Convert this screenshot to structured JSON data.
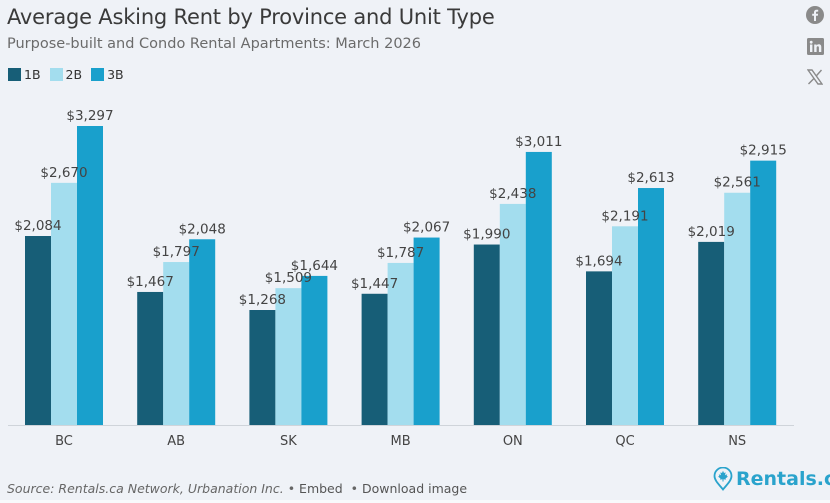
{
  "header": {
    "title": "Average Asking Rent by Province and Unit Type",
    "subtitle": "Purpose-built and Condo Rental Apartments: March 2026"
  },
  "social": [
    {
      "icon": "facebook-icon"
    },
    {
      "icon": "linkedin-icon"
    },
    {
      "icon": "x-icon"
    }
  ],
  "footer": {
    "source": "Source: Rentals.ca Network, Urbanation Inc.",
    "embed": "Embed",
    "download": "Download image",
    "bullet": "•"
  },
  "brand": {
    "name": "Rentals.ca",
    "color": "#2aa3cc"
  },
  "chart_data": {
    "type": "bar",
    "title": "Average Asking Rent by Province and Unit Type",
    "subtitle": "Purpose-built and Condo Rental Apartments: March 2026",
    "xlabel": "",
    "ylabel": "",
    "categories": [
      "BC",
      "AB",
      "SK",
      "MB",
      "ON",
      "QC",
      "NS"
    ],
    "series": [
      {
        "name": "1B",
        "color": "#175e77",
        "values": [
          2084,
          1467,
          1268,
          1447,
          1990,
          1694,
          2019
        ],
        "labels": [
          "$2,084",
          "$1,467",
          "$1,268",
          "$1,447",
          "$1,990",
          "$1,694",
          "$2,019"
        ]
      },
      {
        "name": "2B",
        "color": "#a3ddee",
        "values": [
          2670,
          1797,
          1509,
          1787,
          2438,
          2191,
          2561
        ],
        "labels": [
          "$2,670",
          "$1,797",
          "$1,509",
          "$1,787",
          "$2,438",
          "$2,191",
          "$2,561"
        ]
      },
      {
        "name": "3B",
        "color": "#19a0cc",
        "values": [
          3297,
          2048,
          1644,
          2067,
          3011,
          2613,
          2915
        ],
        "labels": [
          "$3,297",
          "$2,048",
          "$1,644",
          "$2,067",
          "$3,011",
          "$2,613",
          "$2,915"
        ]
      }
    ],
    "ylim": [
      0,
      3297
    ],
    "grid": false,
    "legend": "top-left"
  }
}
